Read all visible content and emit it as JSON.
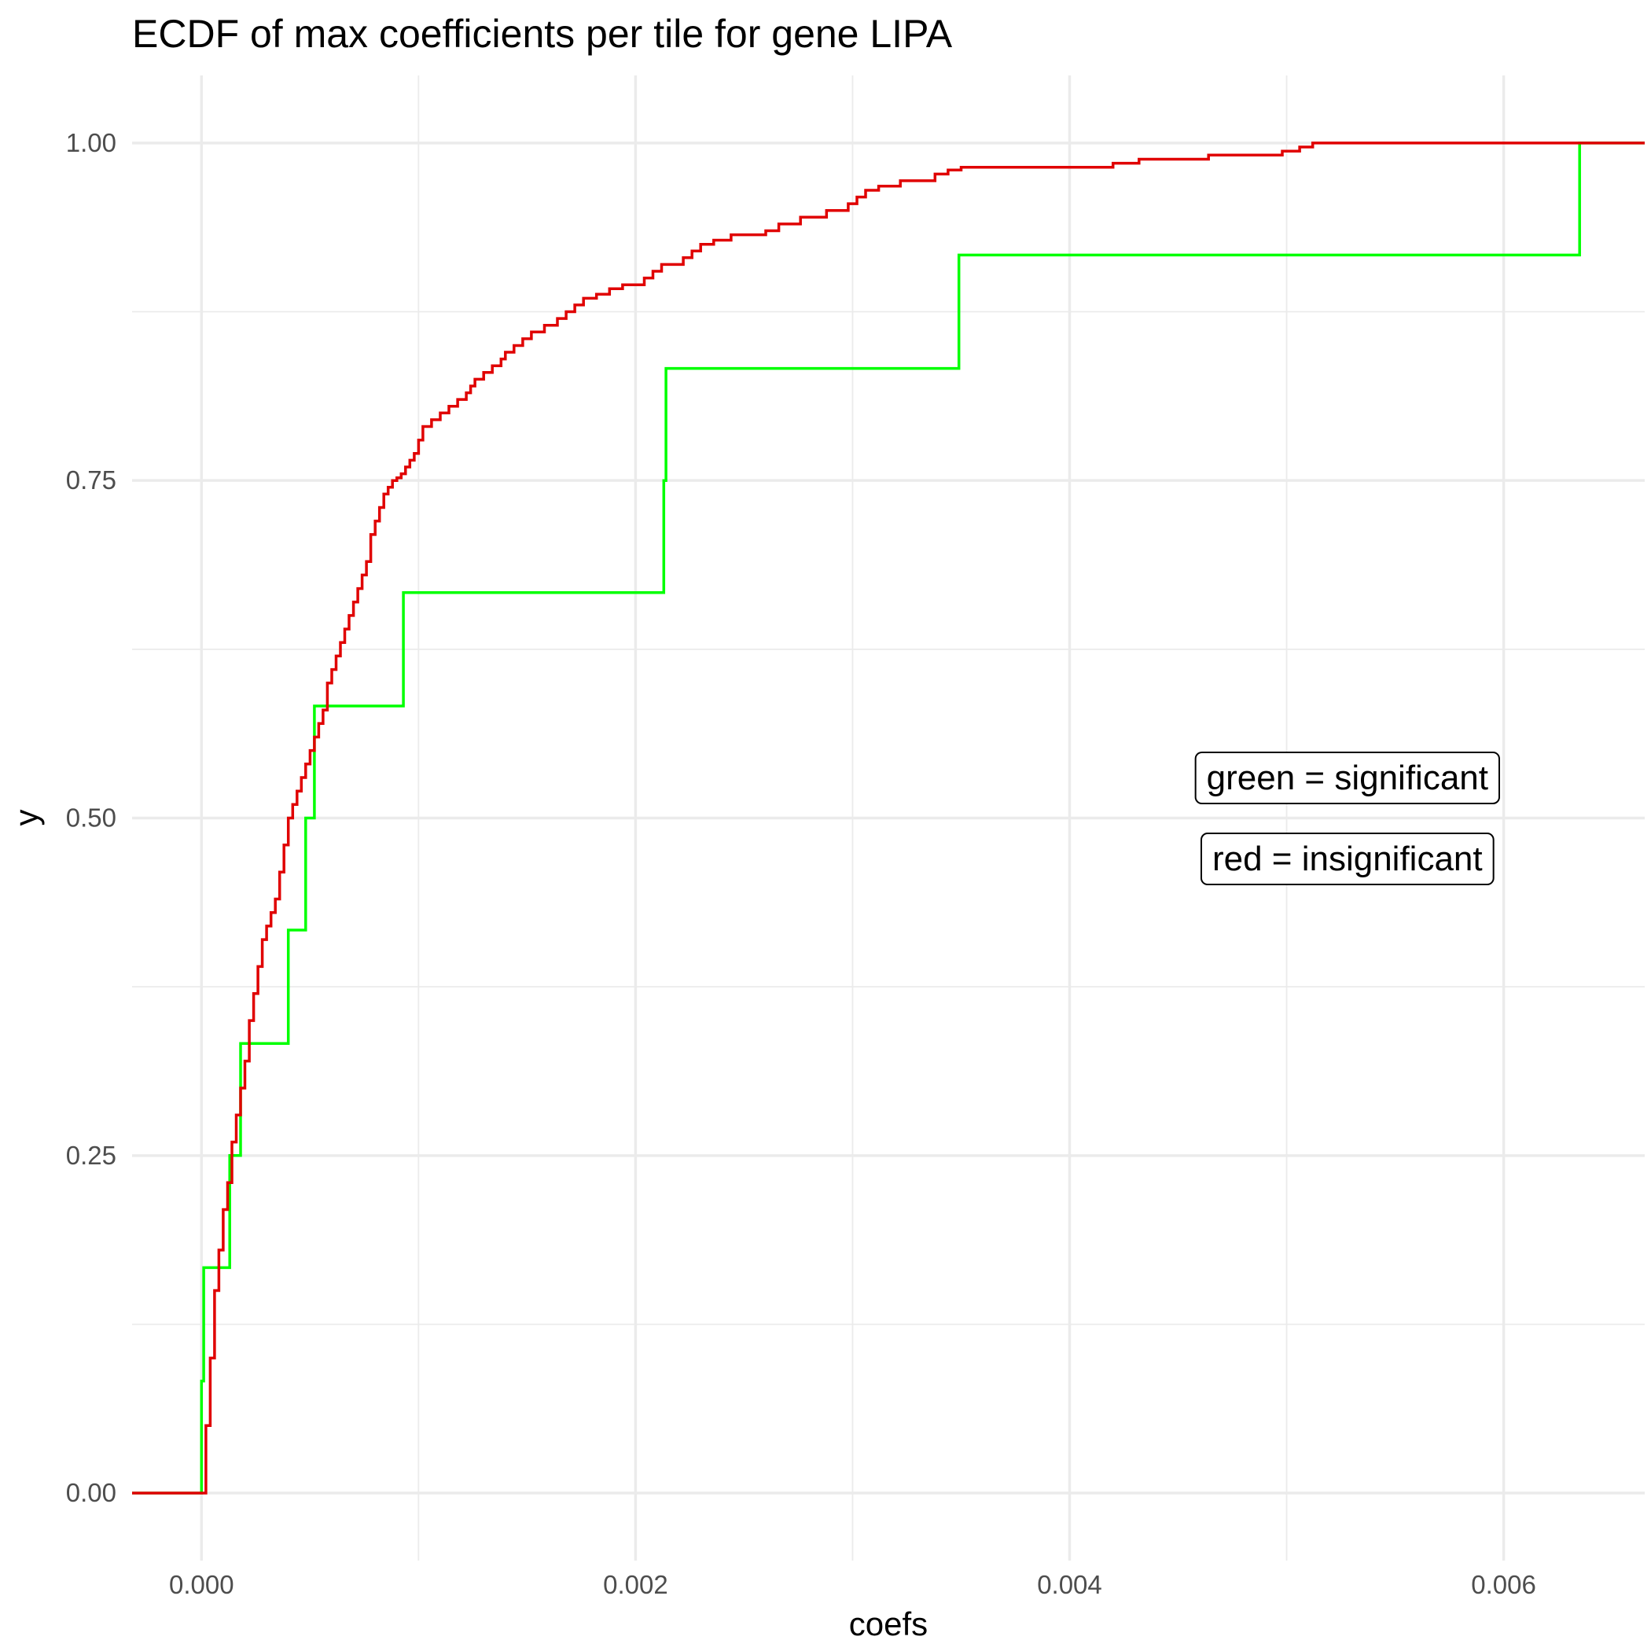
{
  "chart_data": {
    "type": "line",
    "title": "ECDF of max coefficients per tile for gene LIPA",
    "xlabel": "coefs",
    "ylabel": "y",
    "xlim": [
      -0.00032,
      0.00665
    ],
    "ylim": [
      -0.05,
      1.05
    ],
    "x_ticks": [
      {
        "value": 0.0,
        "label": "0.000"
      },
      {
        "value": 0.002,
        "label": "0.002"
      },
      {
        "value": 0.004,
        "label": "0.004"
      },
      {
        "value": 0.006,
        "label": "0.006"
      }
    ],
    "y_ticks": [
      {
        "value": 0.0,
        "label": "0.00"
      },
      {
        "value": 0.25,
        "label": "0.25"
      },
      {
        "value": 0.5,
        "label": "0.50"
      },
      {
        "value": 0.75,
        "label": "0.75"
      },
      {
        "value": 1.0,
        "label": "1.00"
      }
    ],
    "grid": true,
    "legend": "none",
    "annotations": [
      {
        "text": "green = significant",
        "x": 0.00528,
        "y": 0.53
      },
      {
        "text": "red = insignificant",
        "x": 0.00528,
        "y": 0.47
      }
    ],
    "series": [
      {
        "color": "#00ff00",
        "step": true,
        "points": [
          [
            -0.00032,
            0.0
          ],
          [
            0.0,
            0.0
          ],
          [
            0.0,
            0.083
          ],
          [
            1e-05,
            0.167
          ],
          [
            0.00013,
            0.25
          ],
          [
            0.00018,
            0.333
          ],
          [
            0.0004,
            0.417
          ],
          [
            0.00048,
            0.5
          ],
          [
            0.00052,
            0.583
          ],
          [
            0.00093,
            0.667
          ],
          [
            0.00213,
            0.75
          ],
          [
            0.00214,
            0.833
          ],
          [
            0.00349,
            0.917
          ],
          [
            0.00635,
            1.0
          ],
          [
            0.00665,
            1.0
          ]
        ]
      },
      {
        "color": "#e00000",
        "step": true,
        "points": [
          [
            -0.00032,
            0.0
          ],
          [
            0.0,
            0.0
          ],
          [
            2e-05,
            0.05
          ],
          [
            4e-05,
            0.1
          ],
          [
            6e-05,
            0.15
          ],
          [
            8e-05,
            0.18
          ],
          [
            0.0001,
            0.21
          ],
          [
            0.00012,
            0.23
          ],
          [
            0.00014,
            0.26
          ],
          [
            0.00016,
            0.28
          ],
          [
            0.00018,
            0.3
          ],
          [
            0.0002,
            0.32
          ],
          [
            0.00022,
            0.35
          ],
          [
            0.00024,
            0.37
          ],
          [
            0.00026,
            0.39
          ],
          [
            0.00028,
            0.41
          ],
          [
            0.0003,
            0.42
          ],
          [
            0.00032,
            0.43
          ],
          [
            0.00034,
            0.44
          ],
          [
            0.00036,
            0.46
          ],
          [
            0.00038,
            0.48
          ],
          [
            0.0004,
            0.5
          ],
          [
            0.00042,
            0.51
          ],
          [
            0.00044,
            0.52
          ],
          [
            0.00046,
            0.53
          ],
          [
            0.00048,
            0.54
          ],
          [
            0.0005,
            0.55
          ],
          [
            0.00052,
            0.56
          ],
          [
            0.00054,
            0.57
          ],
          [
            0.00056,
            0.58
          ],
          [
            0.00058,
            0.6
          ],
          [
            0.0006,
            0.61
          ],
          [
            0.00062,
            0.62
          ],
          [
            0.00064,
            0.63
          ],
          [
            0.00066,
            0.64
          ],
          [
            0.00068,
            0.65
          ],
          [
            0.0007,
            0.66
          ],
          [
            0.00072,
            0.67
          ],
          [
            0.00074,
            0.68
          ],
          [
            0.00076,
            0.69
          ],
          [
            0.00078,
            0.71
          ],
          [
            0.0008,
            0.72
          ],
          [
            0.00082,
            0.73
          ],
          [
            0.00084,
            0.74
          ],
          [
            0.00086,
            0.745
          ],
          [
            0.00088,
            0.75
          ],
          [
            0.0009,
            0.752
          ],
          [
            0.00092,
            0.755
          ],
          [
            0.00094,
            0.76
          ],
          [
            0.00096,
            0.765
          ],
          [
            0.00098,
            0.77
          ],
          [
            0.001,
            0.78
          ],
          [
            0.00102,
            0.79
          ],
          [
            0.00106,
            0.795
          ],
          [
            0.0011,
            0.8
          ],
          [
            0.00114,
            0.805
          ],
          [
            0.00118,
            0.81
          ],
          [
            0.00122,
            0.815
          ],
          [
            0.00124,
            0.82
          ],
          [
            0.00126,
            0.825
          ],
          [
            0.0013,
            0.83
          ],
          [
            0.00134,
            0.835
          ],
          [
            0.00138,
            0.84
          ],
          [
            0.0014,
            0.845
          ],
          [
            0.00144,
            0.85
          ],
          [
            0.00148,
            0.855
          ],
          [
            0.00152,
            0.86
          ],
          [
            0.00158,
            0.865
          ],
          [
            0.00164,
            0.87
          ],
          [
            0.00168,
            0.875
          ],
          [
            0.00172,
            0.88
          ],
          [
            0.00176,
            0.885
          ],
          [
            0.00182,
            0.888
          ],
          [
            0.00188,
            0.892
          ],
          [
            0.00194,
            0.895
          ],
          [
            0.00204,
            0.9
          ],
          [
            0.00208,
            0.905
          ],
          [
            0.00212,
            0.91
          ],
          [
            0.00222,
            0.915
          ],
          [
            0.00226,
            0.92
          ],
          [
            0.0023,
            0.925
          ],
          [
            0.00236,
            0.928
          ],
          [
            0.00244,
            0.932
          ],
          [
            0.0026,
            0.935
          ],
          [
            0.00266,
            0.94
          ],
          [
            0.00276,
            0.945
          ],
          [
            0.00288,
            0.95
          ],
          [
            0.00298,
            0.955
          ],
          [
            0.00302,
            0.96
          ],
          [
            0.00306,
            0.965
          ],
          [
            0.00312,
            0.968
          ],
          [
            0.00322,
            0.972
          ],
          [
            0.00338,
            0.977
          ],
          [
            0.00344,
            0.98
          ],
          [
            0.0035,
            0.982
          ],
          [
            0.00382,
            0.982
          ],
          [
            0.0042,
            0.985
          ],
          [
            0.00432,
            0.988
          ],
          [
            0.00464,
            0.991
          ],
          [
            0.00498,
            0.994
          ],
          [
            0.00506,
            0.997
          ],
          [
            0.00512,
            1.0
          ],
          [
            0.00665,
            1.0
          ]
        ]
      }
    ]
  }
}
